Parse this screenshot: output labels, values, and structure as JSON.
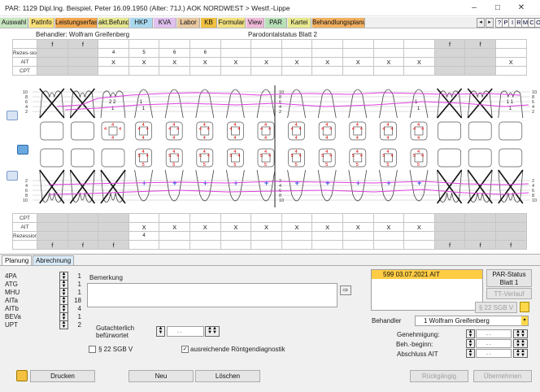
{
  "window": {
    "title": "PAR: 1129  Dipl.Ing. Beispiel, Peter  16.09.1950 (Alter: 71J.)  AOK NORDWEST > Westf.-Lippe",
    "minimize": "–",
    "maximize": "□",
    "close": "✕"
  },
  "tabs": [
    {
      "label": "Auswahl",
      "color": "#c8e6c0"
    },
    {
      "label": "PatInfo",
      "color": "#f7e07a"
    },
    {
      "label": "Leistungserfassung",
      "color": "#f2a850"
    },
    {
      "label": "akt.Befund",
      "color": "#e6e690"
    },
    {
      "label": "HKP",
      "color": "#aad8ee"
    },
    {
      "label": "KVA",
      "color": "#e0c0ee"
    },
    {
      "label": "Labor",
      "color": "#e8c8a0"
    },
    {
      "label": "KB",
      "color": "#f0c040"
    },
    {
      "label": "Formular",
      "color": "#f0e080"
    },
    {
      "label": "View",
      "color": "#f0b8d8"
    },
    {
      "label": "PAR",
      "color": "#b8e0b8"
    },
    {
      "label": "Kartei",
      "color": "#e8e890"
    },
    {
      "label": "Behandlungsplanung",
      "color": "#f2b060"
    }
  ],
  "tab_nav": {
    "prev": "◂",
    "next": "▸"
  },
  "toolbar": {
    "help": "?",
    "p": "P",
    "i": "I",
    "r": "R",
    "m": "M",
    "c": "C",
    "o": "O"
  },
  "chart": {
    "behandler": "Behandler: Wolfram Greifenberg",
    "sheet_title": "Parodontalstatus Blatt 2",
    "upper_rows": {
      "f_row": [
        "f",
        "f",
        "",
        "",
        "",
        "",
        "",
        "",
        "",
        "",
        "",
        "",
        "",
        "f",
        "f",
        ""
      ],
      "rezessionen_label": "Rezes-sionen",
      "rezessionen": [
        "",
        "",
        "4",
        "5",
        "6",
        "6",
        "",
        "",
        "",
        "",
        "",
        "",
        "",
        "",
        "",
        ""
      ],
      "ait_label": "AIT",
      "ait": [
        "",
        "",
        "X",
        "X",
        "X",
        "X",
        "X",
        "X",
        "X",
        "X",
        "X",
        "X",
        "X",
        "",
        "",
        "X"
      ],
      "cpt_label": "CPT"
    },
    "lower_rows": {
      "cpt_label": "CPT",
      "ait_label": "AIT",
      "ait": [
        "",
        "",
        "",
        "X",
        "X",
        "X",
        "X",
        "X",
        "X",
        "X",
        "X",
        "X",
        "X",
        "",
        "",
        ""
      ],
      "rezessionen_label": "Rezessionen",
      "rezessionen": [
        "",
        "",
        "",
        "4",
        "",
        "",
        "",
        "",
        "",
        "",
        "",
        "",
        "",
        "",
        "",
        ""
      ],
      "f_row": [
        "f",
        "f",
        "f",
        "",
        "",
        "",
        "",
        "",
        "",
        "",
        "",
        "",
        "",
        "f",
        "f",
        "f"
      ]
    },
    "upper_pocket_values": [
      [
        "",
        ""
      ],
      [
        "",
        ""
      ],
      [
        "2 2",
        "1"
      ],
      [
        "1",
        "1"
      ],
      [
        "",
        ""
      ],
      [
        "",
        ""
      ],
      [
        "",
        ""
      ],
      [
        "",
        ""
      ],
      [
        "",
        ""
      ],
      [
        "",
        ""
      ],
      [
        "",
        ""
      ],
      [
        "",
        ""
      ],
      [
        "1",
        "1"
      ],
      [
        "",
        ""
      ],
      [
        "",
        ""
      ],
      [
        "1 1",
        "1"
      ]
    ],
    "scale_upper": [
      "10",
      "8",
      "6",
      "4",
      "2"
    ],
    "scale_lower": [
      "2",
      "4",
      "6",
      "8",
      "10"
    ],
    "midline_scale_upper": [
      "10",
      "8",
      "6",
      "4",
      "2"
    ],
    "midline_scale_lower": [
      "2",
      "4",
      "6",
      "8",
      "10"
    ]
  },
  "bottom": {
    "tabs": {
      "planung": "Planung",
      "abrechnung": "Abrechnung"
    },
    "counters": [
      {
        "label": "4PA",
        "value": "1"
      },
      {
        "label": "ATG",
        "value": "1"
      },
      {
        "label": "MHU",
        "value": "1"
      },
      {
        "label": "AITa",
        "value": "18"
      },
      {
        "label": "AITb",
        "value": "4"
      },
      {
        "label": "BEVa",
        "value": "1"
      },
      {
        "label": "UPT",
        "value": "2"
      }
    ],
    "bemerkung_label": "Bemerkung",
    "gutachterlich_label": "Gutachterlich befürwortet",
    "gutachterlich_date": ". .",
    "par22_label": "§ 22 SGB V",
    "roentgen_label": "ausreichende Röntgendiagnostik",
    "roentgen_checked": "✓",
    "status_entry": "599  03.07.2021  AIT",
    "par_status_label": "PAR-Status Blatt 1",
    "tt_verlauf": "TT-Verlauf",
    "sgb_button": "§ 22 SGB V",
    "behandler_label": "Behandler",
    "behandler_value": "1 Wolfram Greifenberg",
    "genehmigung_label": "Genehmigung:",
    "beh_beginn_label": "Beh.-beginn:",
    "abschluss_label": "Abschluss AIT",
    "date_placeholder": ". .",
    "buttons": {
      "drucken": "Drucken",
      "neu": "Neu",
      "loeschen": "Löschen",
      "rueckgaengig": "Rückgängig",
      "uebernehmen": "Übernehmen"
    }
  }
}
